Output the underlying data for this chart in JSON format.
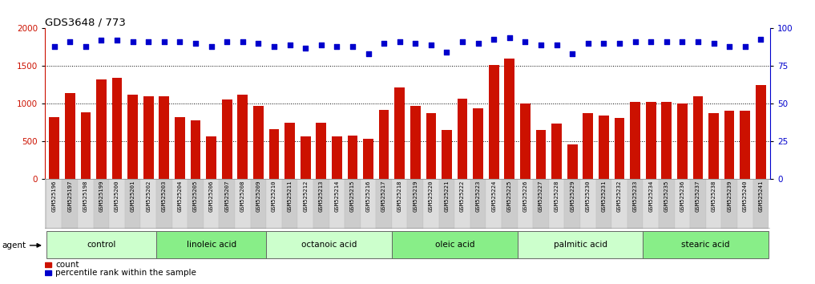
{
  "title": "GDS3648 / 773",
  "samples": [
    "GSM525196",
    "GSM525197",
    "GSM525198",
    "GSM525199",
    "GSM525200",
    "GSM525201",
    "GSM525202",
    "GSM525203",
    "GSM525204",
    "GSM525205",
    "GSM525206",
    "GSM525207",
    "GSM525208",
    "GSM525209",
    "GSM525210",
    "GSM525211",
    "GSM525212",
    "GSM525213",
    "GSM525214",
    "GSM525215",
    "GSM525216",
    "GSM525217",
    "GSM525218",
    "GSM525219",
    "GSM525220",
    "GSM525221",
    "GSM525222",
    "GSM525223",
    "GSM525224",
    "GSM525225",
    "GSM525226",
    "GSM525227",
    "GSM525228",
    "GSM525229",
    "GSM525230",
    "GSM525231",
    "GSM525232",
    "GSM525233",
    "GSM525234",
    "GSM525235",
    "GSM525236",
    "GSM525237",
    "GSM525238",
    "GSM525239",
    "GSM525240",
    "GSM525241"
  ],
  "counts": [
    820,
    1140,
    890,
    1320,
    1340,
    1120,
    1100,
    1100,
    820,
    780,
    560,
    1060,
    1120,
    970,
    660,
    750,
    560,
    750,
    560,
    580,
    530,
    920,
    1220,
    970,
    870,
    650,
    1070,
    940,
    1510,
    1600,
    1000,
    650,
    740,
    460,
    870,
    840,
    810,
    1020,
    1020,
    1020,
    1000,
    1100,
    870,
    910,
    910,
    1250
  ],
  "percentile_ranks": [
    88,
    91,
    88,
    92,
    92,
    91,
    91,
    91,
    91,
    90,
    88,
    91,
    91,
    90,
    88,
    89,
    87,
    89,
    88,
    88,
    83,
    90,
    91,
    90,
    89,
    84,
    91,
    90,
    93,
    94,
    91,
    89,
    89,
    83,
    90,
    90,
    90,
    91,
    91,
    91,
    91,
    91,
    90,
    88,
    88,
    93
  ],
  "groups": [
    {
      "label": "control",
      "start": 0,
      "end": 7,
      "color": "#ccffcc"
    },
    {
      "label": "linoleic acid",
      "start": 7,
      "end": 14,
      "color": "#88ee88"
    },
    {
      "label": "octanoic acid",
      "start": 14,
      "end": 22,
      "color": "#ccffcc"
    },
    {
      "label": "oleic acid",
      "start": 22,
      "end": 30,
      "color": "#88ee88"
    },
    {
      "label": "palmitic acid",
      "start": 30,
      "end": 38,
      "color": "#ccffcc"
    },
    {
      "label": "stearic acid",
      "start": 38,
      "end": 46,
      "color": "#88ee88"
    }
  ],
  "bar_color": "#cc1100",
  "dot_color": "#0000cc",
  "ylim_left": [
    0,
    2000
  ],
  "ylim_right": [
    0,
    100
  ],
  "yticks_left": [
    0,
    500,
    1000,
    1500,
    2000
  ],
  "yticks_right": [
    0,
    25,
    50,
    75,
    100
  ],
  "agent_label": "agent",
  "legend_count_label": "count",
  "legend_pct_label": "percentile rank within the sample"
}
